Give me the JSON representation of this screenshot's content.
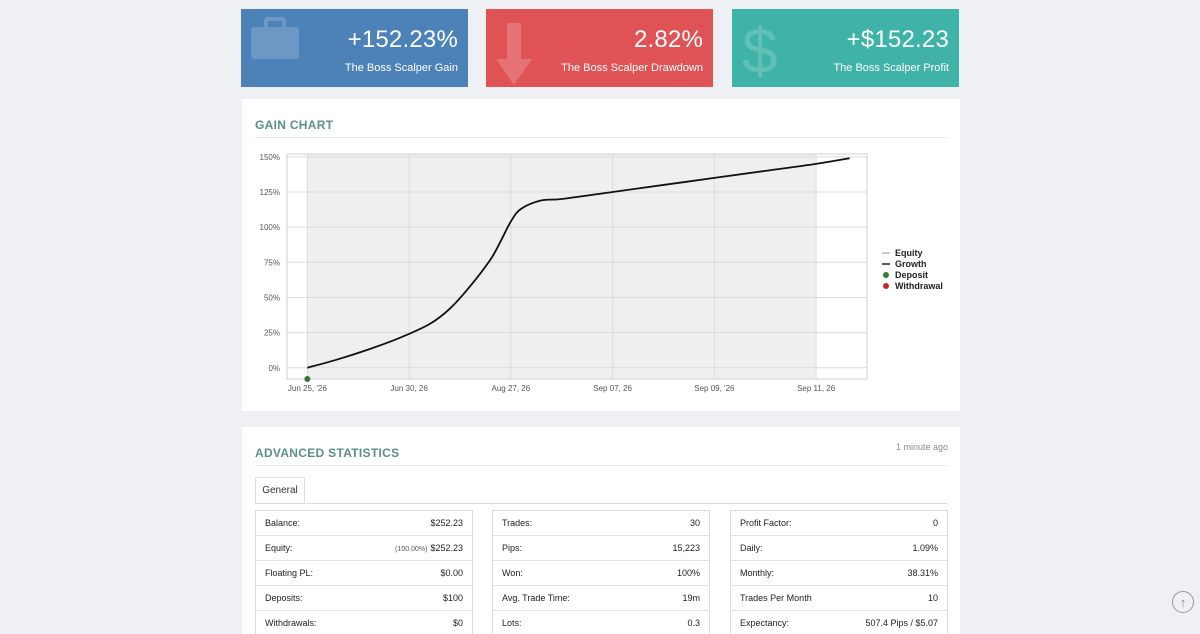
{
  "tiles": {
    "gain": {
      "value": "+152.23%",
      "label": "The Boss Scalper Gain",
      "icon": "briefcase-icon",
      "color": "#4d82b9"
    },
    "drawdown": {
      "value": "2.82%",
      "label": "The Boss Scalper Drawdown",
      "icon": "arrow-down-icon",
      "color": "#e05355"
    },
    "profit": {
      "value": "+$152.23",
      "label": "The Boss Scalper Profit",
      "icon": "dollar-icon",
      "color": "#3fb3a8"
    }
  },
  "gain_chart": {
    "title": "GAIN CHART"
  },
  "chart_data": {
    "type": "line",
    "yticks": [
      "0%",
      "25%",
      "50%",
      "75%",
      "100%",
      "125%",
      "150%"
    ],
    "ytick_values": [
      0,
      25,
      50,
      75,
      100,
      125,
      150
    ],
    "ylim": [
      -8,
      152
    ],
    "xticks": [
      "Jun 25, '26",
      "Jun 30, 26",
      "Aug 27, 26",
      "Sep 07, 26",
      "Sep 09, '26",
      "Sep 11, 26"
    ],
    "xlim": [
      -0.2,
      5.5
    ],
    "legend": [
      "Equity",
      "Growth",
      "Deposit",
      "Withdrawal"
    ],
    "legend_colors": [
      "#999999",
      "#222222",
      "#2e7d32",
      "#c62828"
    ],
    "grid": true,
    "legend_position": "right",
    "series": [
      {
        "name": "Growth",
        "x": [
          0,
          0.3,
          0.6,
          0.9,
          1.2,
          1.4,
          1.6,
          1.8,
          1.9,
          2.0,
          2.1,
          2.3,
          2.5,
          3.0,
          3.5,
          4.0,
          4.5,
          5.0,
          5.33
        ],
        "values": [
          0,
          6,
          13,
          21,
          31,
          42,
          58,
          77,
          90,
          104,
          113,
          119,
          120,
          125,
          130,
          135,
          140,
          145,
          149
        ]
      }
    ],
    "deposit_points": [
      {
        "x": 0,
        "y": -8
      }
    ]
  },
  "advanced_stats": {
    "title": "ADVANCED STATISTICS",
    "updated": "1 minute ago",
    "tab": "General",
    "col1": [
      {
        "label": "Balance:",
        "value": "$252.23",
        "note": ""
      },
      {
        "label": "Equity:",
        "value": "$252.23",
        "note": "(100.00%)"
      },
      {
        "label": "Floating PL:",
        "value": "$0.00",
        "note": ""
      },
      {
        "label": "Deposits:",
        "value": "$100",
        "note": ""
      },
      {
        "label": "Withdrawals:",
        "value": "$0",
        "note": ""
      }
    ],
    "col2": [
      {
        "label": "Trades:",
        "value": "30",
        "note": ""
      },
      {
        "label": "Pips:",
        "value": "15,223",
        "note": ""
      },
      {
        "label": "Won:",
        "value": "100%",
        "note": ""
      },
      {
        "label": "Avg. Trade Time:",
        "value": "19m",
        "note": ""
      },
      {
        "label": "Lots:",
        "value": "0.3",
        "note": ""
      }
    ],
    "col3": [
      {
        "label": "Profit Factor:",
        "value": "0",
        "note": ""
      },
      {
        "label": "Daily:",
        "value": "1.09%",
        "note": ""
      },
      {
        "label": "Monthly:",
        "value": "38.31%",
        "note": ""
      },
      {
        "label": "Trades Per Month",
        "value": "10",
        "note": ""
      },
      {
        "label": "Expectancy:",
        "value": "507.4 Pips / $5.07",
        "note": ""
      }
    ]
  },
  "scroll_top": {
    "icon": "arrow-up-circle-icon"
  }
}
